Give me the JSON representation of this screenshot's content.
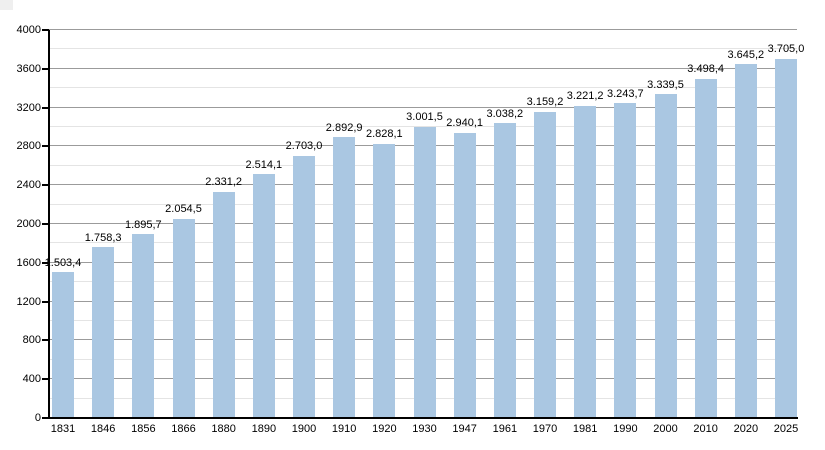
{
  "chart_data": {
    "type": "bar",
    "title": "",
    "xlabel": "",
    "ylabel": "",
    "categories": [
      "1831",
      "1846",
      "1856",
      "1866",
      "1880",
      "1890",
      "1900",
      "1910",
      "1920",
      "1930",
      "1947",
      "1961",
      "1970",
      "1981",
      "1990",
      "2000",
      "2010",
      "2020",
      "2025"
    ],
    "values": [
      1503.4,
      1758.3,
      1895.7,
      2054.5,
      2331.2,
      2514.1,
      2703.0,
      2892.9,
      2828.1,
      3001.5,
      2940.1,
      3038.2,
      3159.2,
      3221.2,
      3243.7,
      3339.5,
      3498.4,
      3645.2,
      3705.0
    ],
    "value_labels": [
      "1.503,4",
      "1.758,3",
      "1.895,7",
      "2.054,5",
      "2.331,2",
      "2.514,1",
      "2.703,0",
      "2.892,9",
      "2.828,1",
      "3.001,5",
      "2.940,1",
      "3.038,2",
      "3.159,2",
      "3.221,2",
      "3.243,7",
      "3.339,5",
      "3.498,4",
      "3.645,2",
      "3.705,0"
    ],
    "ylim": [
      0,
      4000
    ],
    "y_major_ticks": [
      0,
      400,
      800,
      1200,
      1600,
      2000,
      2400,
      2800,
      3200,
      3600,
      4000
    ],
    "y_tick_labels": [
      "0",
      "400",
      "800",
      "1200",
      "1600",
      "2000",
      "2400",
      "2800",
      "3200",
      "3600",
      "4000"
    ],
    "y_major_step": 400,
    "y_minor_step": 200,
    "grid": "on",
    "legend": "none"
  },
  "colors": {
    "bar_fill": "#aac7e2",
    "major_gridline": "#9b9b9b",
    "minor_gridline": "#e4e4e4",
    "axis": "#000000",
    "text": "#000000",
    "background": "#ffffff",
    "corner_artifact": "#efefef"
  }
}
